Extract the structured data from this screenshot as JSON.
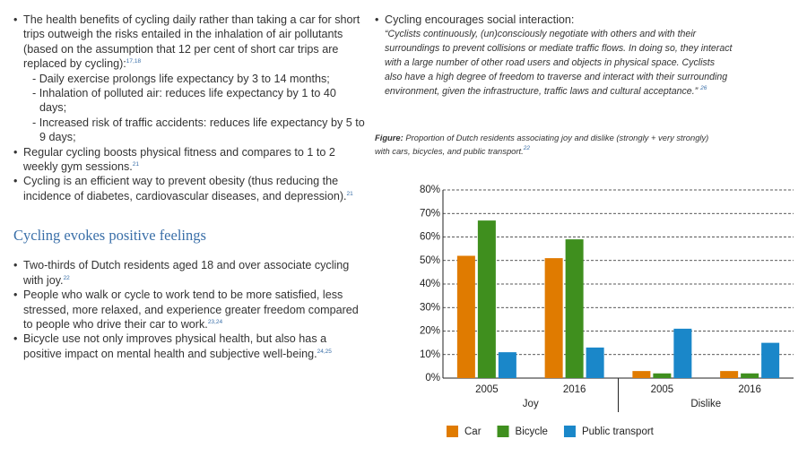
{
  "left_column": {
    "bullets": [
      {
        "text": "The health benefits of cycling daily rather than taking a car for short trips outweigh the risks entailed in the inhalation of air pollutants (based on the assumption that 12 per cent of short car trips are replaced by cycling):",
        "sup": "17,18",
        "subitems": [
          "Daily exercise prolongs life expectancy by 3 to 14 months;",
          "Inhalation of polluted air: reduces life expectancy by 1 to 40 days;",
          "Increased risk of traffic accidents: reduces life expectancy by 5 to 9 days;"
        ]
      },
      {
        "text": "Regular cycling boosts physical fitness and compares to 1 to 2 weekly gym sessions.",
        "sup": "21"
      },
      {
        "text": "Cycling is an efficient way to prevent obesity (thus reducing the incidence of diabetes, cardiovascular diseases, and depression).",
        "sup": "21"
      }
    ],
    "heading": "Cycling evokes positive feelings",
    "section_bullets": [
      {
        "text": "Two-thirds of Dutch residents aged 18 and over associate cycling with joy.",
        "sup": "22"
      },
      {
        "text": "People who walk or cycle to work tend to be more satisfied, less stressed, more relaxed, and experience greater freedom compared to people who drive their car to work.",
        "sup": "23,24"
      },
      {
        "text": "Bicycle use not only improves physical health, but also has a positive impact on mental health and subjective well-being.",
        "sup": "24,25"
      }
    ]
  },
  "right_column": {
    "bullet": "Cycling encourages social interaction:",
    "quote": "“Cyclists continuously, (un)consciously negotiate with others and with their surroundings to prevent collisions or mediate traffic flows. In doing so, they interact with a large number of other road users and objects in physical space. Cyclists also have a high degree of freedom to traverse and interact with their surrounding environment, given the infrastructure, traffic laws and cultural acceptance.”",
    "sup": "26"
  },
  "figure": {
    "label": "Figure:",
    "caption": "Proportion of Dutch residents associating joy and dislike (strongly + very strongly) with cars, bicycles, and public transport.",
    "sup": "22"
  },
  "chart_data": {
    "type": "bar",
    "categories": [
      "2005",
      "2016",
      "2005",
      "2016"
    ],
    "groups": [
      "Joy",
      "Dislike"
    ],
    "series": [
      {
        "name": "Car",
        "color": "#e07b00",
        "values": [
          52,
          51,
          3,
          3
        ]
      },
      {
        "name": "Bicycle",
        "color": "#3f8f1e",
        "values": [
          67,
          59,
          2,
          2
        ]
      },
      {
        "name": "Public transport",
        "color": "#1a87c9",
        "values": [
          11,
          13,
          21,
          15
        ]
      }
    ],
    "ylim": [
      0,
      80
    ],
    "yticks": [
      {
        "value": 0,
        "label": "0%"
      },
      {
        "value": 10,
        "label": "10%"
      },
      {
        "value": 20,
        "label": "20%"
      },
      {
        "value": 30,
        "label": "30%"
      },
      {
        "value": 40,
        "label": "40%"
      },
      {
        "value": 50,
        "label": "50%"
      },
      {
        "value": 60,
        "label": "60%"
      },
      {
        "value": 70,
        "label": "70%"
      },
      {
        "value": 80,
        "label": "80%"
      }
    ],
    "grid": true,
    "legend": "bottom"
  }
}
